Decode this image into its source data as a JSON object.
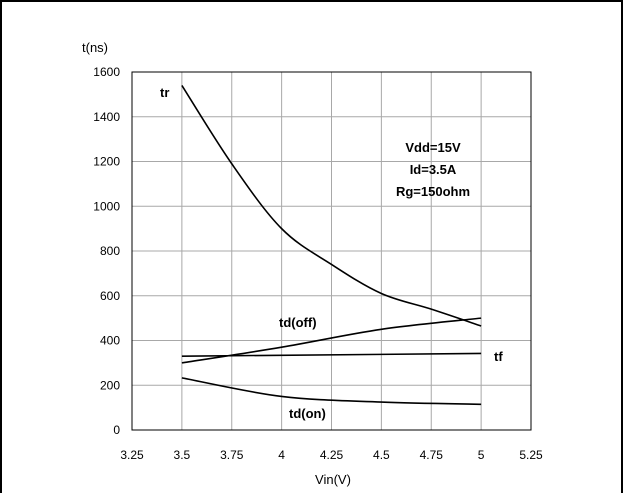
{
  "chart_data": {
    "type": "line",
    "ylabel": "t(ns)",
    "xlabel": "Vin(V)",
    "xlim": [
      3.25,
      5.25
    ],
    "ylim": [
      0,
      1600
    ],
    "xticks": [
      "3.25",
      "3.5",
      "3.75",
      "4",
      "4.25",
      "4.5",
      "4.75",
      "5",
      "5.25"
    ],
    "yticks": [
      "0",
      "200",
      "400",
      "600",
      "800",
      "1000",
      "1200",
      "1400",
      "1600"
    ],
    "grid": true,
    "annotation": [
      "Vdd=15V",
      "Id=3.5A",
      "Rg=150ohm"
    ],
    "series": [
      {
        "name": "tr",
        "x": [
          3.5,
          3.75,
          4.0,
          4.25,
          4.5,
          4.75,
          5.0
        ],
        "y": [
          1540,
          1190,
          900,
          740,
          610,
          540,
          465
        ]
      },
      {
        "name": "tf",
        "x": [
          3.5,
          5.0
        ],
        "y": [
          330,
          342
        ]
      },
      {
        "name": "td(off)",
        "x": [
          3.5,
          4.0,
          4.5,
          5.0
        ],
        "y": [
          300,
          370,
          450,
          500
        ]
      },
      {
        "name": "td(on)",
        "x": [
          3.5,
          4.0,
          4.5,
          5.0
        ],
        "y": [
          233,
          150,
          125,
          115
        ]
      }
    ]
  }
}
